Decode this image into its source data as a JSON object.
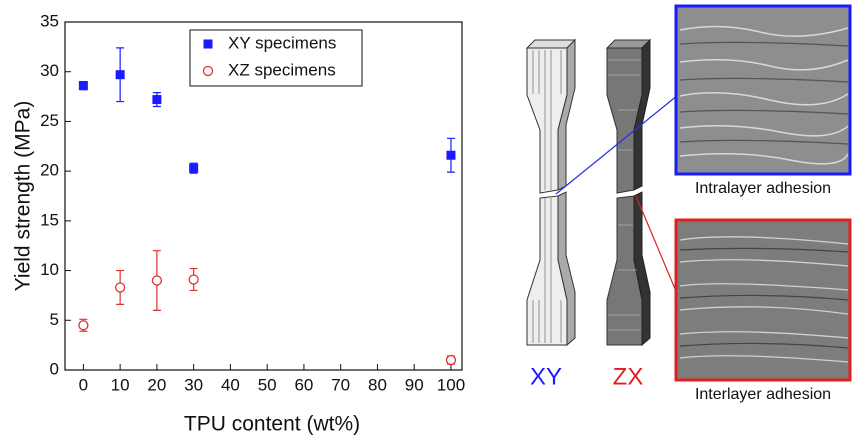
{
  "chart_data": {
    "type": "scatter",
    "xlabel": "TPU content (wt%)",
    "ylabel": "Yield strength (MPa)",
    "xlim": [
      -5,
      103
    ],
    "ylim": [
      0,
      35
    ],
    "xticks": [
      0,
      10,
      20,
      30,
      40,
      50,
      60,
      70,
      80,
      90,
      100
    ],
    "yticks": [
      0,
      5,
      10,
      15,
      20,
      25,
      30,
      35
    ],
    "legend": "top",
    "series": [
      {
        "name": "XY specimens",
        "color": "#1a1aff",
        "marker": "square",
        "x": [
          0,
          10,
          20,
          30,
          100
        ],
        "values": [
          28.6,
          29.7,
          27.2,
          20.3,
          21.6
        ],
        "errors": [
          0.4,
          2.7,
          0.7,
          0.5,
          1.7
        ]
      },
      {
        "name": "XZ specimens",
        "color": "#e03030",
        "marker": "circle",
        "x": [
          0,
          10,
          20,
          30,
          100
        ],
        "values": [
          4.5,
          8.3,
          9.0,
          9.1,
          1.0
        ],
        "errors": [
          0.6,
          1.7,
          3.0,
          1.1,
          0.4
        ]
      }
    ]
  },
  "figure": {
    "specimen_labels": [
      "XY",
      "ZX"
    ],
    "captions": [
      "Intralayer adhesion",
      "Interlayer adhesion"
    ]
  }
}
